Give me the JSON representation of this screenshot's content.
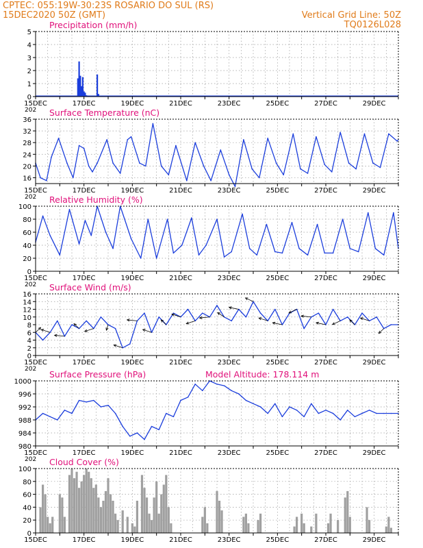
{
  "header": {
    "line1_left": "CPTEC:   055:19W-30:23S   ROSARIO DO SUL (RS)",
    "line2_left": "15DEC2020 50Z (GMT)",
    "line2_right": "Vertical Grid Line: 50Z",
    "line3_right": "TQ0126L028"
  },
  "colors": {
    "header": "#e07b1a",
    "panel_title": "#e0107a",
    "series": "#1a3ddc",
    "cloud": "#a0a0a0",
    "grid": "#9a9a9a"
  },
  "x_axis": {
    "tick_labels": [
      "15DEC",
      "17DEC",
      "19DEC",
      "21DEC",
      "23DEC",
      "25DEC",
      "27DEC",
      "29DEC"
    ],
    "cut_label": "202"
  },
  "chart_data": [
    {
      "type": "bar",
      "title": "Precipitation (mm/h)",
      "ylim": [
        0,
        5
      ],
      "y_ticks": [
        "0",
        "1",
        "2",
        "3",
        "4",
        "5"
      ],
      "x": [
        1.75,
        1.8,
        1.85,
        1.9,
        1.95,
        2.0,
        2.05,
        2.1,
        2.2,
        2.55,
        2.6,
        3.7
      ],
      "values": [
        1.4,
        2.7,
        1.6,
        0.8,
        1.5,
        0.4,
        0.3,
        0.1,
        0.05,
        1.7,
        0.2,
        0.05
      ]
    },
    {
      "type": "line",
      "title": "Surface Temperature (nC)",
      "ylim": [
        14,
        36
      ],
      "y_ticks": [
        "16",
        "20",
        "24",
        "28",
        "32",
        "36"
      ],
      "x": [
        0,
        0.2,
        0.45,
        0.65,
        0.95,
        1.3,
        1.55,
        1.8,
        2.0,
        2.2,
        2.35,
        2.55,
        2.95,
        3.2,
        3.5,
        3.8,
        3.95,
        4.3,
        4.55,
        4.85,
        5.2,
        5.5,
        5.8,
        6.25,
        6.6,
        6.95,
        7.25,
        7.65,
        8.0,
        8.25,
        8.6,
        8.95,
        9.25,
        9.6,
        9.95,
        10.25,
        10.65,
        10.95,
        11.25,
        11.6,
        11.95,
        12.25,
        12.6,
        12.95,
        13.25,
        13.6,
        13.95,
        14.25,
        14.6,
        14.95,
        15.0
      ],
      "values": [
        21,
        16,
        15,
        23,
        29.5,
        21,
        16,
        27,
        26,
        20,
        18,
        21,
        29,
        21,
        17.5,
        29,
        30,
        21,
        20,
        34.5,
        20,
        17,
        27,
        15,
        28,
        20,
        15,
        25.5,
        17,
        13,
        29,
        19,
        16,
        29.5,
        21,
        17,
        31,
        19,
        17.5,
        30,
        20.5,
        18,
        31.5,
        21,
        19,
        31,
        21,
        19.5,
        31,
        28.5,
        29
      ]
    },
    {
      "type": "line",
      "title": "Relative Humidity (%)",
      "ylim": [
        0,
        100
      ],
      "y_ticks": [
        "0",
        "20",
        "40",
        "60",
        "80",
        "100"
      ],
      "x": [
        0,
        0.3,
        0.6,
        1.0,
        1.4,
        1.8,
        2.05,
        2.3,
        2.55,
        2.9,
        3.2,
        3.5,
        3.95,
        4.35,
        4.65,
        5.0,
        5.45,
        5.7,
        6.05,
        6.45,
        6.75,
        7.05,
        7.5,
        7.8,
        8.1,
        8.55,
        8.85,
        9.15,
        9.55,
        9.9,
        10.2,
        10.6,
        10.9,
        11.25,
        11.65,
        11.95,
        12.3,
        12.7,
        13.0,
        13.35,
        13.75,
        14.05,
        14.4,
        14.8,
        15.0
      ],
      "values": [
        45,
        85,
        55,
        25,
        95,
        42,
        78,
        55,
        100,
        60,
        35,
        100,
        50,
        20,
        80,
        20,
        80,
        28,
        40,
        82,
        25,
        40,
        80,
        22,
        30,
        88,
        35,
        25,
        72,
        30,
        28,
        75,
        35,
        25,
        72,
        28,
        28,
        80,
        35,
        30,
        90,
        35,
        25,
        90,
        35
      ]
    },
    {
      "type": "line",
      "title": "Surface Wind (m/s)",
      "ylim": [
        0,
        16
      ],
      "y_ticks": [
        "0",
        "2",
        "4",
        "6",
        "8",
        "10",
        "12",
        "14",
        "16"
      ],
      "x": [
        0,
        0.3,
        0.6,
        0.9,
        1.2,
        1.5,
        1.8,
        2.1,
        2.4,
        2.7,
        3.0,
        3.3,
        3.6,
        3.9,
        4.2,
        4.5,
        4.8,
        5.1,
        5.4,
        5.7,
        6.0,
        6.3,
        6.6,
        6.9,
        7.2,
        7.5,
        7.8,
        8.1,
        8.4,
        8.7,
        9.0,
        9.3,
        9.6,
        9.9,
        10.2,
        10.5,
        10.8,
        11.1,
        11.4,
        11.7,
        12.0,
        12.3,
        12.6,
        12.9,
        13.2,
        13.5,
        13.8,
        14.1,
        14.4,
        14.7,
        15.0
      ],
      "values": [
        6,
        4,
        6,
        9,
        5,
        8,
        7,
        9,
        7,
        10,
        8,
        7,
        2,
        3,
        9,
        11,
        6,
        10,
        8,
        11,
        10,
        12,
        9,
        11,
        10,
        13,
        10,
        9,
        12,
        10,
        14,
        11,
        9,
        12,
        8,
        11,
        12,
        7,
        10,
        11,
        8,
        12,
        9,
        10,
        8,
        11,
        9,
        10,
        7,
        8,
        8
      ]
    },
    {
      "type": "line",
      "title": "Surface Pressure (hPa)",
      "annotation": "Model Altitude: 178.114 m",
      "ylim": [
        980,
        1000
      ],
      "y_ticks": [
        "980",
        "984",
        "988",
        "992",
        "996",
        "1000"
      ],
      "x": [
        0,
        0.3,
        0.6,
        0.9,
        1.2,
        1.5,
        1.8,
        2.1,
        2.4,
        2.7,
        3.0,
        3.3,
        3.6,
        3.9,
        4.2,
        4.5,
        4.8,
        5.1,
        5.4,
        5.7,
        6.0,
        6.3,
        6.6,
        6.9,
        7.2,
        7.5,
        7.8,
        8.1,
        8.4,
        8.7,
        9.0,
        9.3,
        9.6,
        9.9,
        10.2,
        10.5,
        10.8,
        11.1,
        11.4,
        11.7,
        12.0,
        12.3,
        12.6,
        12.9,
        13.2,
        13.5,
        13.8,
        14.1,
        14.4,
        14.7,
        15.0
      ],
      "values": [
        988,
        990,
        989,
        988,
        991,
        990,
        994,
        993.5,
        994,
        992,
        992.5,
        990,
        986,
        983,
        984,
        982,
        986,
        985,
        990,
        989,
        994,
        995,
        999,
        997,
        1000,
        999,
        998.5,
        997,
        996,
        994,
        993,
        992,
        990,
        993,
        989,
        992,
        991,
        989,
        993,
        990,
        991,
        990,
        988,
        991,
        989,
        990,
        991,
        990,
        990,
        990,
        990
      ]
    },
    {
      "type": "bar",
      "title": "Cloud Cover (%)",
      "ylim": [
        0,
        100
      ],
      "y_ticks": [
        "0",
        "20",
        "40",
        "60",
        "80",
        "100"
      ],
      "x": [
        0.2,
        0.3,
        0.4,
        0.5,
        0.6,
        0.7,
        1.0,
        1.1,
        1.2,
        1.4,
        1.5,
        1.6,
        1.7,
        1.8,
        1.9,
        2.0,
        2.1,
        2.2,
        2.3,
        2.4,
        2.5,
        2.6,
        2.7,
        2.8,
        2.9,
        3.0,
        3.1,
        3.2,
        3.3,
        3.4,
        3.6,
        3.8,
        4.0,
        4.1,
        4.2,
        4.4,
        4.5,
        4.6,
        4.7,
        4.8,
        4.9,
        5.0,
        5.1,
        5.2,
        5.3,
        5.4,
        5.5,
        5.6,
        6.9,
        7.0,
        7.1,
        7.5,
        7.6,
        7.7,
        8.6,
        8.7,
        8.8,
        9.2,
        9.3,
        10.7,
        10.8,
        11.0,
        11.1,
        11.4,
        11.6,
        12.1,
        12.2,
        12.5,
        12.8,
        12.9,
        13.0,
        13.7,
        13.8,
        14.5,
        14.6,
        14.7
      ],
      "values": [
        40,
        75,
        60,
        25,
        15,
        25,
        60,
        55,
        25,
        90,
        100,
        85,
        95,
        70,
        80,
        90,
        100,
        95,
        85,
        70,
        75,
        55,
        40,
        50,
        65,
        85,
        60,
        50,
        30,
        20,
        35,
        25,
        15,
        10,
        50,
        90,
        70,
        55,
        30,
        20,
        55,
        80,
        30,
        60,
        75,
        90,
        40,
        15,
        25,
        40,
        15,
        65,
        50,
        35,
        25,
        30,
        15,
        20,
        30,
        10,
        25,
        30,
        15,
        10,
        30,
        15,
        30,
        20,
        55,
        65,
        25,
        40,
        20,
        10,
        25,
        8
      ]
    }
  ]
}
